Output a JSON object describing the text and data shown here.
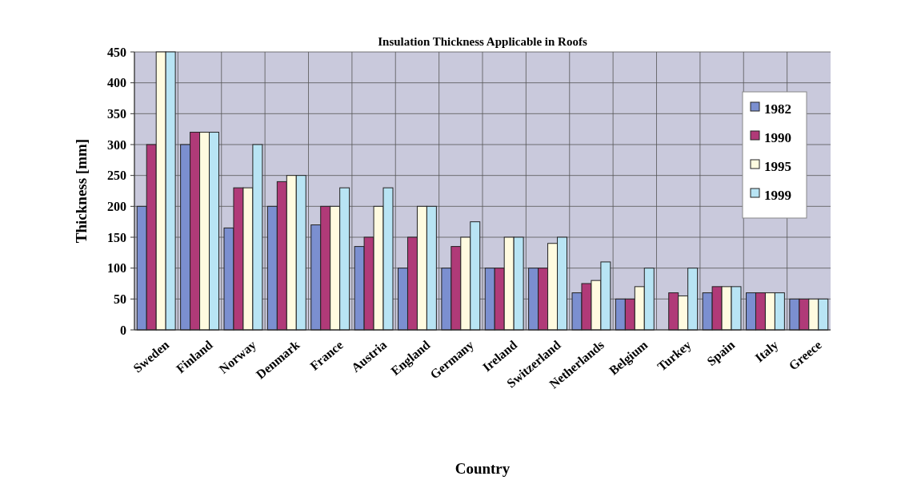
{
  "chart_data": {
    "type": "bar",
    "title": "Insulation Thickness Applicable in Roofs",
    "xlabel": "Country",
    "ylabel": "Thickness [mm]",
    "categories": [
      "Sweden",
      "Finland",
      "Norway",
      "Denmark",
      "France",
      "Austria",
      "England",
      "Germany",
      "Ireland",
      "Switzerland",
      "Netherlands",
      "Belgium",
      "Turkey",
      "Spain",
      "Italy",
      "Greece"
    ],
    "series": [
      {
        "name": "1982",
        "color": "#7b8fd0",
        "values": [
          200,
          300,
          165,
          200,
          170,
          135,
          100,
          100,
          100,
          100,
          60,
          50,
          null,
          60,
          60,
          50
        ]
      },
      {
        "name": "1990",
        "color": "#b03a78",
        "values": [
          300,
          320,
          230,
          240,
          200,
          150,
          150,
          135,
          100,
          100,
          75,
          50,
          60,
          70,
          60,
          50
        ]
      },
      {
        "name": "1995",
        "color": "#fffbe0",
        "values": [
          450,
          320,
          230,
          250,
          200,
          200,
          200,
          150,
          150,
          140,
          80,
          70,
          55,
          70,
          60,
          50
        ]
      },
      {
        "name": "1999",
        "color": "#b8e4f4",
        "values": [
          450,
          320,
          300,
          250,
          230,
          230,
          200,
          175,
          150,
          150,
          110,
          100,
          100,
          70,
          60,
          50
        ]
      }
    ],
    "ylim": [
      0,
      450
    ],
    "yticks": [
      0,
      50,
      100,
      150,
      200,
      250,
      300,
      350,
      400,
      450
    ],
    "grid": true,
    "legend": "top right"
  }
}
